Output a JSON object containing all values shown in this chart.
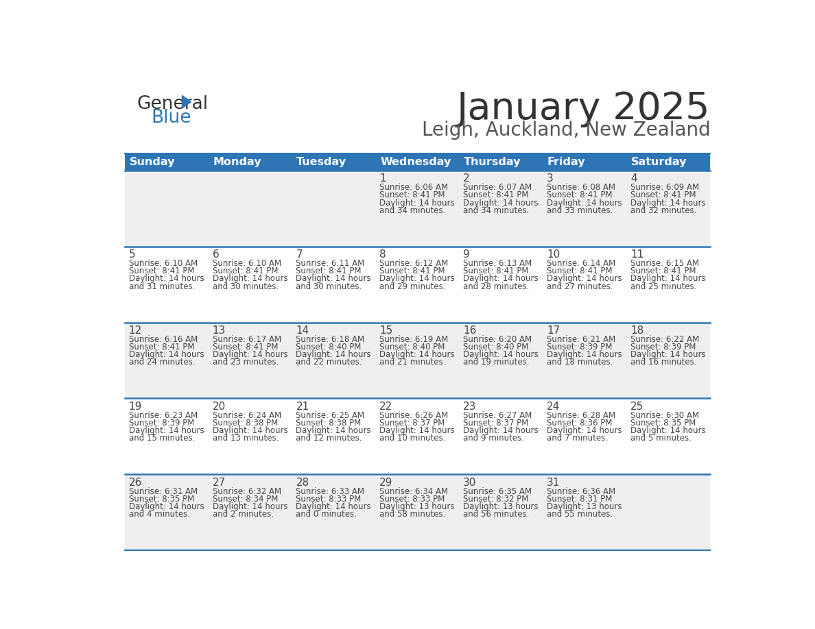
{
  "title": "January 2025",
  "subtitle": "Leigh, Auckland, New Zealand",
  "header_color": "#2E75B6",
  "header_text_color": "#FFFFFF",
  "cell_bg_even": "#EFEFEF",
  "cell_bg_odd": "#FFFFFF",
  "title_color": "#333333",
  "subtitle_color": "#555555",
  "day_headers": [
    "Sunday",
    "Monday",
    "Tuesday",
    "Wednesday",
    "Thursday",
    "Friday",
    "Saturday"
  ],
  "calendar": [
    [
      {
        "day": "",
        "sunrise": "",
        "sunset": "",
        "daylight_h": "",
        "daylight_m": ""
      },
      {
        "day": "",
        "sunrise": "",
        "sunset": "",
        "daylight_h": "",
        "daylight_m": ""
      },
      {
        "day": "",
        "sunrise": "",
        "sunset": "",
        "daylight_h": "",
        "daylight_m": ""
      },
      {
        "day": "1",
        "sunrise": "6:06 AM",
        "sunset": "8:41 PM",
        "daylight_h": "14 hours",
        "daylight_m": "and 34 minutes."
      },
      {
        "day": "2",
        "sunrise": "6:07 AM",
        "sunset": "8:41 PM",
        "daylight_h": "14 hours",
        "daylight_m": "and 34 minutes."
      },
      {
        "day": "3",
        "sunrise": "6:08 AM",
        "sunset": "8:41 PM",
        "daylight_h": "14 hours",
        "daylight_m": "and 33 minutes."
      },
      {
        "day": "4",
        "sunrise": "6:09 AM",
        "sunset": "8:41 PM",
        "daylight_h": "14 hours",
        "daylight_m": "and 32 minutes."
      }
    ],
    [
      {
        "day": "5",
        "sunrise": "6:10 AM",
        "sunset": "8:41 PM",
        "daylight_h": "14 hours",
        "daylight_m": "and 31 minutes."
      },
      {
        "day": "6",
        "sunrise": "6:10 AM",
        "sunset": "8:41 PM",
        "daylight_h": "14 hours",
        "daylight_m": "and 30 minutes."
      },
      {
        "day": "7",
        "sunrise": "6:11 AM",
        "sunset": "8:41 PM",
        "daylight_h": "14 hours",
        "daylight_m": "and 30 minutes."
      },
      {
        "day": "8",
        "sunrise": "6:12 AM",
        "sunset": "8:41 PM",
        "daylight_h": "14 hours",
        "daylight_m": "and 29 minutes."
      },
      {
        "day": "9",
        "sunrise": "6:13 AM",
        "sunset": "8:41 PM",
        "daylight_h": "14 hours",
        "daylight_m": "and 28 minutes."
      },
      {
        "day": "10",
        "sunrise": "6:14 AM",
        "sunset": "8:41 PM",
        "daylight_h": "14 hours",
        "daylight_m": "and 27 minutes."
      },
      {
        "day": "11",
        "sunrise": "6:15 AM",
        "sunset": "8:41 PM",
        "daylight_h": "14 hours",
        "daylight_m": "and 25 minutes."
      }
    ],
    [
      {
        "day": "12",
        "sunrise": "6:16 AM",
        "sunset": "8:41 PM",
        "daylight_h": "14 hours",
        "daylight_m": "and 24 minutes."
      },
      {
        "day": "13",
        "sunrise": "6:17 AM",
        "sunset": "8:41 PM",
        "daylight_h": "14 hours",
        "daylight_m": "and 23 minutes."
      },
      {
        "day": "14",
        "sunrise": "6:18 AM",
        "sunset": "8:40 PM",
        "daylight_h": "14 hours",
        "daylight_m": "and 22 minutes."
      },
      {
        "day": "15",
        "sunrise": "6:19 AM",
        "sunset": "8:40 PM",
        "daylight_h": "14 hours",
        "daylight_m": "and 21 minutes."
      },
      {
        "day": "16",
        "sunrise": "6:20 AM",
        "sunset": "8:40 PM",
        "daylight_h": "14 hours",
        "daylight_m": "and 19 minutes."
      },
      {
        "day": "17",
        "sunrise": "6:21 AM",
        "sunset": "8:39 PM",
        "daylight_h": "14 hours",
        "daylight_m": "and 18 minutes."
      },
      {
        "day": "18",
        "sunrise": "6:22 AM",
        "sunset": "8:39 PM",
        "daylight_h": "14 hours",
        "daylight_m": "and 16 minutes."
      }
    ],
    [
      {
        "day": "19",
        "sunrise": "6:23 AM",
        "sunset": "8:39 PM",
        "daylight_h": "14 hours",
        "daylight_m": "and 15 minutes."
      },
      {
        "day": "20",
        "sunrise": "6:24 AM",
        "sunset": "8:38 PM",
        "daylight_h": "14 hours",
        "daylight_m": "and 13 minutes."
      },
      {
        "day": "21",
        "sunrise": "6:25 AM",
        "sunset": "8:38 PM",
        "daylight_h": "14 hours",
        "daylight_m": "and 12 minutes."
      },
      {
        "day": "22",
        "sunrise": "6:26 AM",
        "sunset": "8:37 PM",
        "daylight_h": "14 hours",
        "daylight_m": "and 10 minutes."
      },
      {
        "day": "23",
        "sunrise": "6:27 AM",
        "sunset": "8:37 PM",
        "daylight_h": "14 hours",
        "daylight_m": "and 9 minutes."
      },
      {
        "day": "24",
        "sunrise": "6:28 AM",
        "sunset": "8:36 PM",
        "daylight_h": "14 hours",
        "daylight_m": "and 7 minutes."
      },
      {
        "day": "25",
        "sunrise": "6:30 AM",
        "sunset": "8:35 PM",
        "daylight_h": "14 hours",
        "daylight_m": "and 5 minutes."
      }
    ],
    [
      {
        "day": "26",
        "sunrise": "6:31 AM",
        "sunset": "8:35 PM",
        "daylight_h": "14 hours",
        "daylight_m": "and 4 minutes."
      },
      {
        "day": "27",
        "sunrise": "6:32 AM",
        "sunset": "8:34 PM",
        "daylight_h": "14 hours",
        "daylight_m": "and 2 minutes."
      },
      {
        "day": "28",
        "sunrise": "6:33 AM",
        "sunset": "8:33 PM",
        "daylight_h": "14 hours",
        "daylight_m": "and 0 minutes."
      },
      {
        "day": "29",
        "sunrise": "6:34 AM",
        "sunset": "8:33 PM",
        "daylight_h": "13 hours",
        "daylight_m": "and 58 minutes."
      },
      {
        "day": "30",
        "sunrise": "6:35 AM",
        "sunset": "8:32 PM",
        "daylight_h": "13 hours",
        "daylight_m": "and 56 minutes."
      },
      {
        "day": "31",
        "sunrise": "6:36 AM",
        "sunset": "8:31 PM",
        "daylight_h": "13 hours",
        "daylight_m": "and 55 minutes."
      },
      {
        "day": "",
        "sunrise": "",
        "sunset": "",
        "daylight_h": "",
        "daylight_m": ""
      }
    ]
  ]
}
